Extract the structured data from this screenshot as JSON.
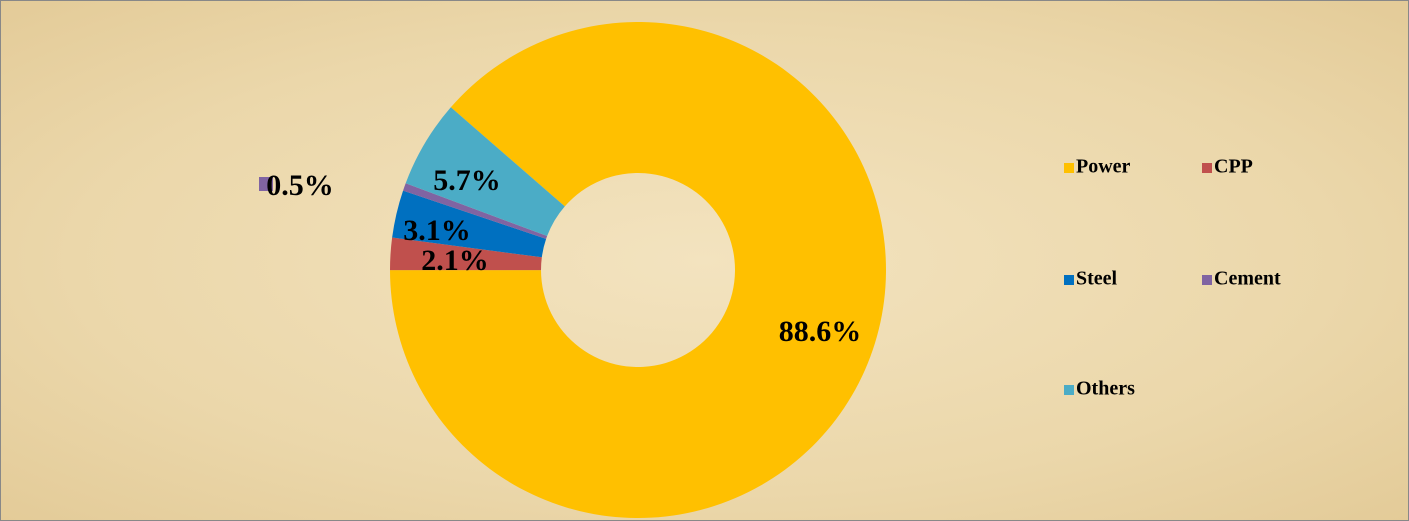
{
  "chart_data": {
    "type": "donut",
    "categories": [
      "Power",
      "CPP",
      "Steel",
      "Cement",
      "Others"
    ],
    "values": [
      88.6,
      2.1,
      3.1,
      0.5,
      5.7
    ],
    "value_labels": [
      "88.6%",
      "2.1%",
      "3.1%",
      "0.5%",
      "5.7%"
    ],
    "colors": [
      "#FFC000",
      "#C0504D",
      "#0070C0",
      "#8064A2",
      "#4BACC6"
    ],
    "legend": "right"
  }
}
